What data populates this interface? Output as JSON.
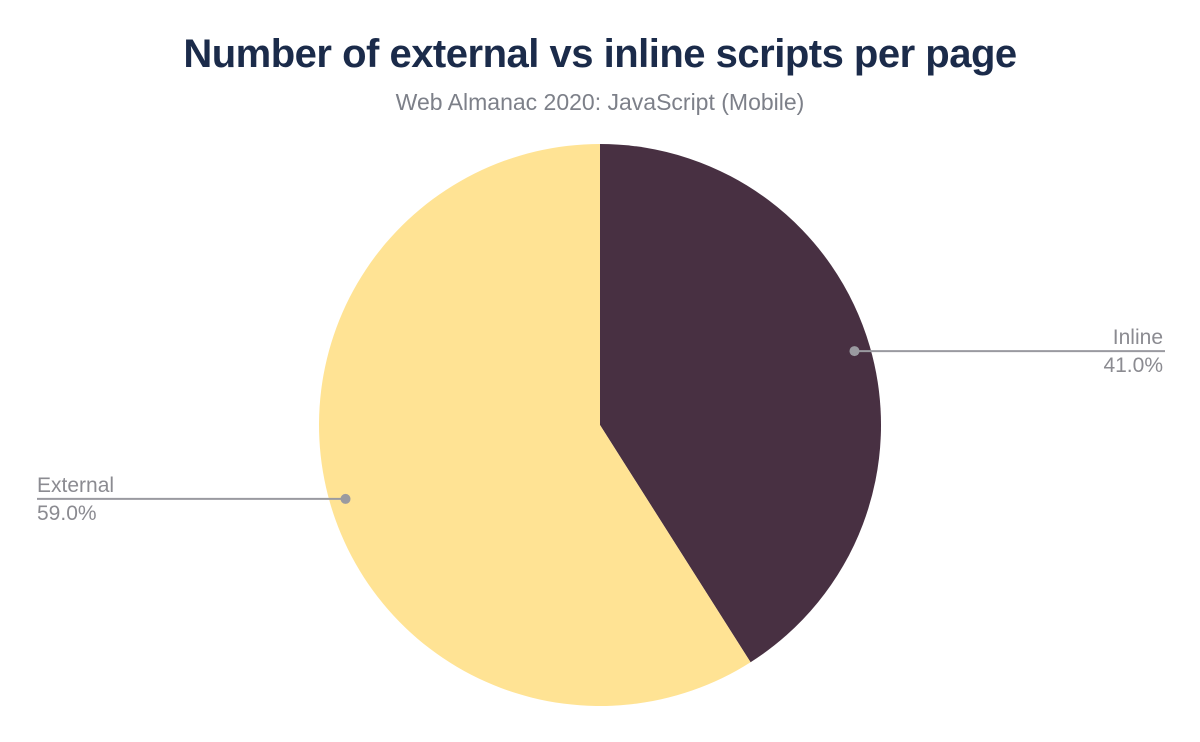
{
  "header": {
    "title": "Number of external vs inline scripts per page",
    "subtitle": "Web Almanac 2020: JavaScript (Mobile)"
  },
  "colors": {
    "background": "#ffffff",
    "title_text": "#1b2b4a",
    "subtitle_text": "#7d8089",
    "label_text": "#8b8b91",
    "leader_line": "#9a9aa0",
    "slice_inline": "#483042",
    "slice_external": "#ffe394"
  },
  "chart_data": {
    "type": "pie",
    "title": "Number of external vs inline scripts per page",
    "subtitle": "Web Almanac 2020: JavaScript (Mobile)",
    "start_angle_deg": 0,
    "direction": "clockwise",
    "legend_position": "none",
    "labels_outside": true,
    "categories": [
      "Inline",
      "External"
    ],
    "values": [
      41.0,
      59.0
    ],
    "slices": [
      {
        "label": "Inline",
        "value": 41.0,
        "display": "41.0%",
        "color": "#483042",
        "label_side": "right"
      },
      {
        "label": "External",
        "value": 59.0,
        "display": "59.0%",
        "color": "#ffe394",
        "label_side": "left"
      }
    ]
  }
}
